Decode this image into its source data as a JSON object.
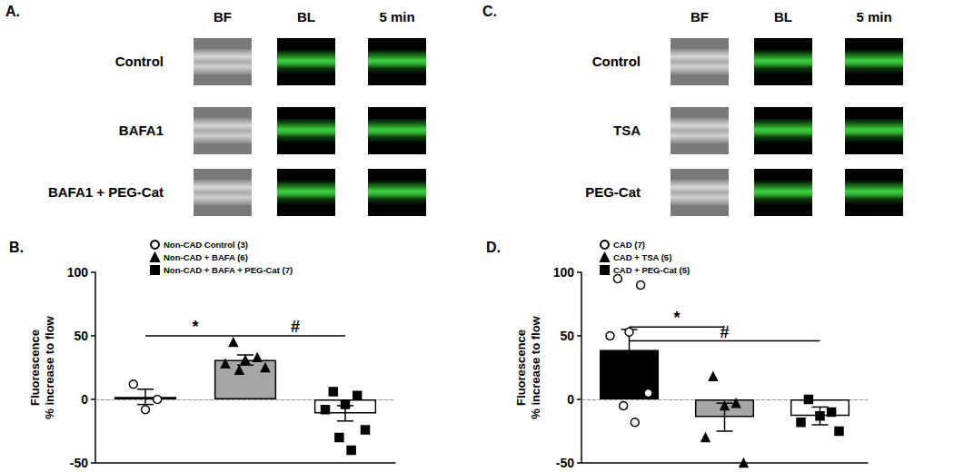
{
  "image_panels": [
    {
      "label": "A.",
      "columns": [
        "BF",
        "BL",
        "5 min"
      ],
      "rows": [
        "Control",
        "BAFA1",
        "BAFA1 + PEG-Cat"
      ]
    },
    {
      "label": "C.",
      "columns": [
        "BF",
        "BL",
        "5 min"
      ],
      "rows": [
        "Control",
        "TSA",
        "PEG-Cat"
      ]
    }
  ],
  "chart_data": [
    {
      "type": "bar",
      "title": "B.",
      "ylabel": "Fluorescence\n% increase to flow",
      "categories": [
        null,
        null,
        null
      ],
      "ylim": [
        -50,
        100
      ],
      "yticks": [
        -50,
        0,
        50,
        100
      ],
      "grid": false,
      "legend": "top",
      "tick_labels": "y",
      "series": [
        {
          "name": "Non-CAD Control (3)",
          "color": "#ffffff",
          "marker": "open circle",
          "values": [
            2,
            null,
            null
          ],
          "errors": [
            6,
            null,
            null
          ],
          "points": [
            [
              12,
              0,
              -8
            ],
            null,
            null
          ]
        },
        {
          "name": "Non-CAD + BAFA (6)",
          "color": "#a6a6a6",
          "marker": "triangle",
          "values": [
            null,
            31,
            null
          ],
          "errors": [
            null,
            4,
            null
          ],
          "points": [
            null,
            [
              45,
              33,
              31,
              28,
              25,
              23
            ],
            null
          ]
        },
        {
          "name": "Non-CAD + BAFA + PEG-Cat (7)",
          "color": "#ffffff",
          "marker": "square",
          "values": [
            null,
            null,
            -11
          ],
          "errors": [
            null,
            null,
            6
          ],
          "points": [
            null,
            null,
            [
              6,
              3,
              -4,
              -8,
              -24,
              -30,
              -40
            ]
          ]
        }
      ],
      "annotations": [
        {
          "text": "*",
          "from": 0,
          "to": 1,
          "y": 50
        },
        {
          "text": "#",
          "from": 1,
          "to": 2,
          "y": 50
        }
      ]
    },
    {
      "type": "bar",
      "title": "D.",
      "ylabel": "Fluorescence\n% increase to flow",
      "categories": [
        null,
        null,
        null
      ],
      "ylim": [
        -50,
        100
      ],
      "yticks": [
        -50,
        0,
        50,
        100
      ],
      "grid": false,
      "legend": "top",
      "tick_labels": "y",
      "series": [
        {
          "name": "CAD (7)",
          "color": "#000000",
          "marker": "open circle",
          "values": [
            39,
            null,
            null
          ],
          "errors": [
            16,
            null,
            null
          ],
          "points": [
            [
              95,
              90,
              53,
              50,
              5,
              -5,
              -18
            ],
            null,
            null
          ]
        },
        {
          "name": "CAD + TSA (5)",
          "color": "#a6a6a6",
          "marker": "triangle",
          "values": [
            null,
            -14,
            null
          ],
          "errors": [
            null,
            11,
            null
          ],
          "points": [
            null,
            [
              18,
              -3,
              -5,
              -30,
              -50
            ],
            null
          ]
        },
        {
          "name": "CAD + PEG-Cat (5)",
          "color": "#ffffff",
          "marker": "square",
          "values": [
            null,
            null,
            -13
          ],
          "errors": [
            null,
            null,
            7
          ],
          "points": [
            null,
            null,
            [
              0,
              -10,
              -13,
              -18,
              -25
            ]
          ]
        }
      ],
      "annotations": [
        {
          "text": "*",
          "from": 0,
          "to": 1,
          "y": 57
        },
        {
          "text": "#",
          "from": 0,
          "to": 2,
          "y": 46
        }
      ]
    }
  ]
}
